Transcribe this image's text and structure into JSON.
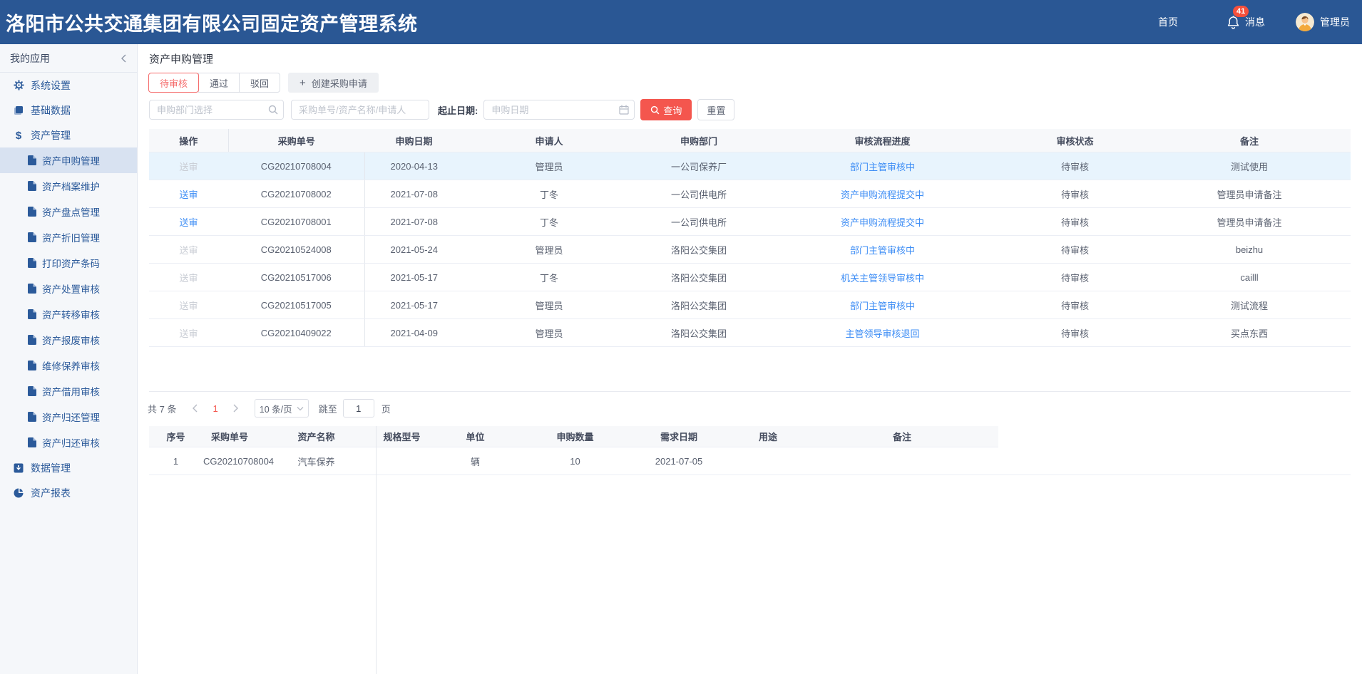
{
  "app": {
    "title": "洛阳市公共交通集团有限公司固定资产管理系统",
    "nav": {
      "home": "首页",
      "messages": "消息",
      "badge": "41",
      "user": "管理员"
    }
  },
  "sidebar": {
    "header": "我的应用",
    "items": [
      {
        "label": "系统设置",
        "icon": "gear",
        "level": 1
      },
      {
        "label": "基础数据",
        "icon": "books",
        "level": 1
      },
      {
        "label": "资产管理",
        "icon": "dollar",
        "level": 1
      },
      {
        "label": "资产申购管理",
        "icon": "file",
        "level": 2,
        "selected": true
      },
      {
        "label": "资产档案维护",
        "icon": "file",
        "level": 2
      },
      {
        "label": "资产盘点管理",
        "icon": "file",
        "level": 2
      },
      {
        "label": "资产折旧管理",
        "icon": "file",
        "level": 2
      },
      {
        "label": "打印资产条码",
        "icon": "file",
        "level": 2
      },
      {
        "label": "资产处置审核",
        "icon": "file",
        "level": 2
      },
      {
        "label": "资产转移审核",
        "icon": "file",
        "level": 2
      },
      {
        "label": "资产报废审核",
        "icon": "file",
        "level": 2
      },
      {
        "label": "维修保养审核",
        "icon": "file",
        "level": 2
      },
      {
        "label": "资产借用审核",
        "icon": "file",
        "level": 2
      },
      {
        "label": "资产归还管理",
        "icon": "file",
        "level": 2
      },
      {
        "label": "资产归还审核",
        "icon": "file",
        "level": 2
      },
      {
        "label": "数据管理",
        "icon": "data",
        "level": 1
      },
      {
        "label": "资产报表",
        "icon": "pie",
        "level": 1
      }
    ]
  },
  "page": {
    "title": "资产申购管理",
    "tabs": [
      {
        "label": "待审核",
        "active": true
      },
      {
        "label": "通过"
      },
      {
        "label": "驳回"
      }
    ],
    "create_plus": "+",
    "create_label": "创建采购申请"
  },
  "filters": {
    "dept_placeholder": "申购部门选择",
    "keyword_placeholder": "采购单号/资产名称/申请人",
    "date_label": "起止日期:",
    "date_placeholder": "申购日期",
    "search_button": "查询",
    "reset_button": "重置"
  },
  "orders_table": {
    "columns": [
      "操作",
      "采购单号",
      "申购日期",
      "申请人",
      "申购部门",
      "审核流程进度",
      "审核状态",
      "备注"
    ],
    "rows": [
      {
        "action": "送审",
        "action_enabled": false,
        "highlighted": true,
        "order_no": "CG20210708004",
        "date": "2020-04-13",
        "applicant": "管理员",
        "dept": "一公司保养厂",
        "progress": "部门主管审核中",
        "status": "待审核",
        "remark": "测试使用"
      },
      {
        "action": "送审",
        "action_enabled": true,
        "order_no": "CG20210708002",
        "date": "2021-07-08",
        "applicant": "丁冬",
        "dept": "一公司供电所",
        "progress": "资产申购流程提交中",
        "status": "待审核",
        "remark": "管理员申请备注"
      },
      {
        "action": "送审",
        "action_enabled": true,
        "order_no": "CG20210708001",
        "date": "2021-07-08",
        "applicant": "丁冬",
        "dept": "一公司供电所",
        "progress": "资产申购流程提交中",
        "status": "待审核",
        "remark": "管理员申请备注"
      },
      {
        "action": "送审",
        "action_enabled": false,
        "order_no": "CG20210524008",
        "date": "2021-05-24",
        "applicant": "管理员",
        "dept": "洛阳公交集团",
        "progress": "部门主管审核中",
        "status": "待审核",
        "remark": "beizhu"
      },
      {
        "action": "送审",
        "action_enabled": false,
        "order_no": "CG20210517006",
        "date": "2021-05-17",
        "applicant": "丁冬",
        "dept": "洛阳公交集团",
        "progress": "机关主管领导审核中",
        "status": "待审核",
        "remark": "cailll"
      },
      {
        "action": "送审",
        "action_enabled": false,
        "order_no": "CG20210517005",
        "date": "2021-05-17",
        "applicant": "管理员",
        "dept": "洛阳公交集团",
        "progress": "部门主管审核中",
        "status": "待审核",
        "remark": "测试流程"
      },
      {
        "action": "送审",
        "action_enabled": false,
        "order_no": "CG20210409022",
        "date": "2021-04-09",
        "applicant": "管理员",
        "dept": "洛阳公交集团",
        "progress": "主管领导审核退回",
        "status": "待审核",
        "remark": "买点东西"
      }
    ]
  },
  "pagination": {
    "total": "共 7 条",
    "page": "1",
    "page_size": "10 条/页",
    "jump_label": "跳至",
    "jump_value": "1",
    "page_suffix": "页"
  },
  "detail_table": {
    "columns": [
      "序号",
      "采购单号",
      "资产名称",
      "规格型号",
      "单位",
      "申购数量",
      "需求日期",
      "用途",
      "备注"
    ],
    "rows": [
      {
        "index": "1",
        "order_no": "CG20210708004",
        "asset_name": "汽车保养",
        "spec": "",
        "unit": "辆",
        "qty": "10",
        "need_date": "2021-07-05",
        "purpose": "",
        "remark": ""
      }
    ]
  },
  "colors": {
    "header_bg": "#2a5794",
    "accent_red": "#f4564e",
    "link_blue": "#3d8df5",
    "badge_red": "#f5503c"
  }
}
